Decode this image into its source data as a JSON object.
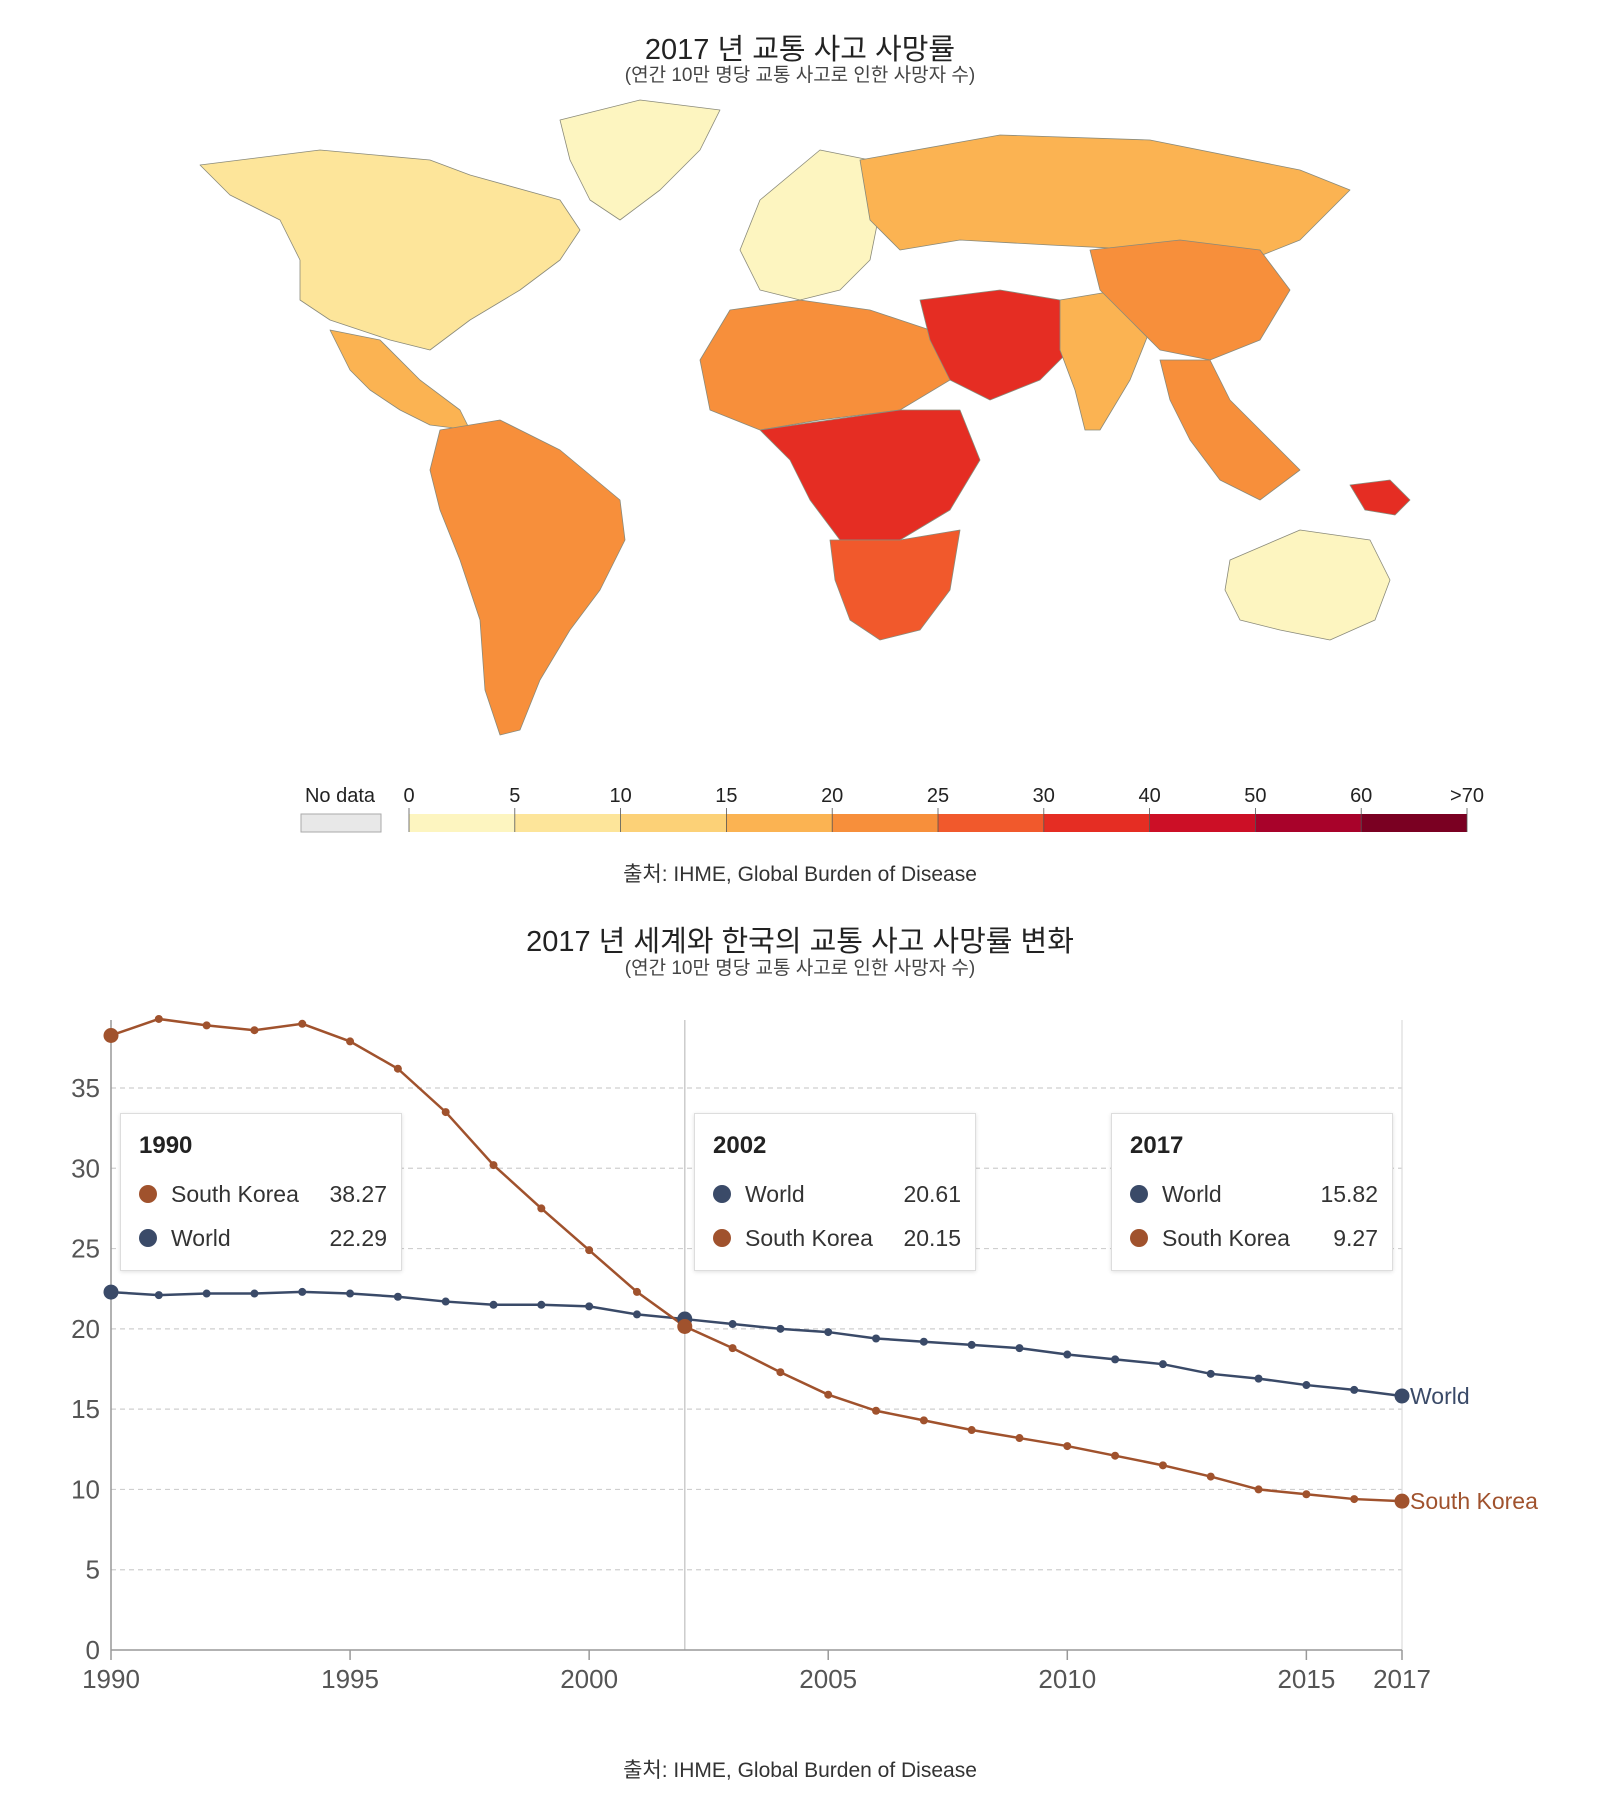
{
  "map": {
    "title": "2017 년 교통 사고 사망률",
    "subtitle": "(연간 10만 명당 교통 사고로 인한 사망자 수)",
    "source": "출처: IHME, Global Burden of Disease",
    "legend": {
      "no_data_label": "No data",
      "no_data_color": "#e8e8e8",
      "ticks": [
        "0",
        "5",
        "10",
        "15",
        "20",
        "25",
        "30",
        "40",
        "50",
        "60",
        ">70"
      ],
      "colors": [
        "#fdf5c0",
        "#fde59a",
        "#fcd177",
        "#fbb352",
        "#f78f3b",
        "#f1592c",
        "#e52d23",
        "#cc0f26",
        "#a8022a",
        "#7a0022"
      ]
    },
    "regions": [
      {
        "name": "North America",
        "color": "#fde59a"
      },
      {
        "name": "Greenland",
        "color": "#fdf5c0"
      },
      {
        "name": "Central America",
        "color": "#fbb352"
      },
      {
        "name": "South America",
        "color": "#f78f3b"
      },
      {
        "name": "Europe",
        "color": "#fdf5c0"
      },
      {
        "name": "Russia",
        "color": "#fbb352"
      },
      {
        "name": "North Africa",
        "color": "#f78f3b"
      },
      {
        "name": "Central Africa",
        "color": "#e52d23"
      },
      {
        "name": "Southern Africa",
        "color": "#f1592c"
      },
      {
        "name": "Middle East",
        "color": "#e52d23"
      },
      {
        "name": "South Asia",
        "color": "#fbb352"
      },
      {
        "name": "China",
        "color": "#f78f3b"
      },
      {
        "name": "Southeast Asia",
        "color": "#f78f3b"
      },
      {
        "name": "Australia",
        "color": "#fdf5c0"
      },
      {
        "name": "Papua New Guinea",
        "color": "#e52d23"
      }
    ]
  },
  "chart": {
    "title": "2017 년 세계와 한국의 교통 사고 사망률 변화",
    "subtitle": "(연간 10만 명당 교통 사고로 인한 사망자 수)",
    "source": "출처: IHME, Global Burden of Disease"
  },
  "tooltips": [
    {
      "year": "1990",
      "rows": [
        {
          "name": "South Korea",
          "value": "38.27",
          "color": "#a0522d"
        },
        {
          "name": "World",
          "value": "22.29",
          "color": "#3a4a68"
        }
      ]
    },
    {
      "year": "2002",
      "rows": [
        {
          "name": "World",
          "value": "20.61",
          "color": "#3a4a68"
        },
        {
          "name": "South Korea",
          "value": "20.15",
          "color": "#a0522d"
        }
      ]
    },
    {
      "year": "2017",
      "rows": [
        {
          "name": "World",
          "value": "15.82",
          "color": "#3a4a68"
        },
        {
          "name": "South Korea",
          "value": "9.27",
          "color": "#a0522d"
        }
      ]
    }
  ],
  "chart_data": {
    "type": "line",
    "title": "2017 년 세계와 한국의 교통 사고 사망률 변화",
    "subtitle": "(연간 10만 명당 교통 사고로 인한 사망자 수)",
    "xlabel": "",
    "ylabel": "",
    "xlim": [
      1990,
      2017
    ],
    "ylim": [
      0,
      39
    ],
    "x_ticks": [
      1990,
      1995,
      2000,
      2005,
      2010,
      2015,
      2017
    ],
    "y_ticks": [
      0,
      5,
      10,
      15,
      20,
      25,
      30,
      35
    ],
    "highlight_year": 2002,
    "x": [
      1990,
      1991,
      1992,
      1993,
      1994,
      1995,
      1996,
      1997,
      1998,
      1999,
      2000,
      2001,
      2002,
      2003,
      2004,
      2005,
      2006,
      2007,
      2008,
      2009,
      2010,
      2011,
      2012,
      2013,
      2014,
      2015,
      2016,
      2017
    ],
    "series": [
      {
        "name": "World",
        "color": "#3a4a68",
        "values": [
          22.29,
          22.1,
          22.2,
          22.2,
          22.3,
          22.2,
          22.0,
          21.7,
          21.5,
          21.5,
          21.4,
          20.9,
          20.61,
          20.3,
          20.0,
          19.8,
          19.4,
          19.2,
          19.0,
          18.8,
          18.4,
          18.1,
          17.8,
          17.2,
          16.9,
          16.5,
          16.2,
          15.82
        ]
      },
      {
        "name": "South Korea",
        "color": "#a0522d",
        "values": [
          38.27,
          39.3,
          38.9,
          38.6,
          39.0,
          37.9,
          36.2,
          33.5,
          30.2,
          27.5,
          24.9,
          22.3,
          20.15,
          18.8,
          17.3,
          15.9,
          14.9,
          14.3,
          13.7,
          13.2,
          12.7,
          12.1,
          11.5,
          10.8,
          10.0,
          9.7,
          9.4,
          9.27
        ]
      }
    ]
  }
}
